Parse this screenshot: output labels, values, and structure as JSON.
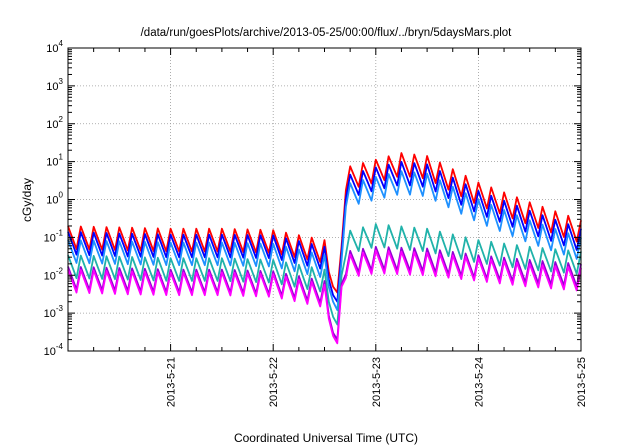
{
  "chart_data": {
    "type": "line",
    "title": "/data/run/goesPlots/archive/2013-05-25/00:00/flux/../bryn/5daysMars.plot",
    "xlabel": "Coordinated Universal Time (UTC)",
    "ylabel": "cGy/day",
    "yscale": "log",
    "ylim": [
      0.0001,
      10000
    ],
    "y_ticks": [
      {
        "base": "10",
        "exp": "-4"
      },
      {
        "base": "10",
        "exp": "-3"
      },
      {
        "base": "10",
        "exp": "-2"
      },
      {
        "base": "10",
        "exp": "-1"
      },
      {
        "base": "10",
        "exp": "0"
      },
      {
        "base": "10",
        "exp": "1"
      },
      {
        "base": "10",
        "exp": "2"
      },
      {
        "base": "10",
        "exp": "3"
      },
      {
        "base": "10",
        "exp": "4"
      }
    ],
    "x_ticks": [
      "2013-5-21",
      "2013-5-22",
      "2013-5-23",
      "2013-5-24",
      "2013-5-25"
    ],
    "xlim": [
      "2013-05-20",
      "2013-05-25"
    ],
    "grid": true,
    "series": [
      {
        "color": "#ff0000",
        "values": [
          {
            "x": "2013-05-20 00:00",
            "y": 0.07
          },
          {
            "x": "2013-05-20 12:00",
            "y": 0.065
          },
          {
            "x": "2013-05-21 00:00",
            "y": 0.06
          },
          {
            "x": "2013-05-21 12:00",
            "y": 0.06
          },
          {
            "x": "2013-05-22 00:00",
            "y": 0.055
          },
          {
            "x": "2013-05-22 12:00",
            "y": 0.03
          },
          {
            "x": "2013-05-22 14:00",
            "y": 0.005
          },
          {
            "x": "2013-05-22 15:00",
            "y": 0.0035
          },
          {
            "x": "2013-05-22 16:00",
            "y": 0.06
          },
          {
            "x": "2013-05-22 17:00",
            "y": 2.5
          },
          {
            "x": "2013-05-23 00:00",
            "y": 4
          },
          {
            "x": "2013-05-23 06:00",
            "y": 6
          },
          {
            "x": "2013-05-23 12:00",
            "y": 5
          },
          {
            "x": "2013-05-24 00:00",
            "y": 1
          },
          {
            "x": "2013-05-24 12:00",
            "y": 0.3
          },
          {
            "x": "2013-05-25 00:00",
            "y": 0.1
          }
        ]
      },
      {
        "color": "#0000ff",
        "values": [
          {
            "x": "2013-05-20 00:00",
            "y": 0.05
          },
          {
            "x": "2013-05-20 12:00",
            "y": 0.045
          },
          {
            "x": "2013-05-21 00:00",
            "y": 0.042
          },
          {
            "x": "2013-05-21 12:00",
            "y": 0.042
          },
          {
            "x": "2013-05-22 00:00",
            "y": 0.04
          },
          {
            "x": "2013-05-22 12:00",
            "y": 0.02
          },
          {
            "x": "2013-05-22 14:00",
            "y": 0.003
          },
          {
            "x": "2013-05-22 15:00",
            "y": 0.002
          },
          {
            "x": "2013-05-22 16:00",
            "y": 0.04
          },
          {
            "x": "2013-05-22 17:00",
            "y": 1.5
          },
          {
            "x": "2013-05-23 00:00",
            "y": 2.5
          },
          {
            "x": "2013-05-23 06:00",
            "y": 3.5
          },
          {
            "x": "2013-05-23 12:00",
            "y": 3
          },
          {
            "x": "2013-05-24 00:00",
            "y": 0.6
          },
          {
            "x": "2013-05-24 12:00",
            "y": 0.18
          },
          {
            "x": "2013-05-25 00:00",
            "y": 0.06
          }
        ]
      },
      {
        "color": "#1e90ff",
        "values": [
          {
            "x": "2013-05-20 00:00",
            "y": 0.03
          },
          {
            "x": "2013-05-20 12:00",
            "y": 0.028
          },
          {
            "x": "2013-05-21 00:00",
            "y": 0.026
          },
          {
            "x": "2013-05-21 12:00",
            "y": 0.026
          },
          {
            "x": "2013-05-22 00:00",
            "y": 0.024
          },
          {
            "x": "2013-05-22 12:00",
            "y": 0.012
          },
          {
            "x": "2013-05-22 14:00",
            "y": 0.002
          },
          {
            "x": "2013-05-22 15:00",
            "y": 0.0012
          },
          {
            "x": "2013-05-22 16:00",
            "y": 0.025
          },
          {
            "x": "2013-05-22 17:00",
            "y": 0.9
          },
          {
            "x": "2013-05-23 00:00",
            "y": 1.4
          },
          {
            "x": "2013-05-23 06:00",
            "y": 2
          },
          {
            "x": "2013-05-23 12:00",
            "y": 1.7
          },
          {
            "x": "2013-05-24 00:00",
            "y": 0.35
          },
          {
            "x": "2013-05-24 12:00",
            "y": 0.1
          },
          {
            "x": "2013-05-25 00:00",
            "y": 0.035
          }
        ]
      },
      {
        "color": "#20b2aa",
        "values": [
          {
            "x": "2013-05-20 00:00",
            "y": 0.012
          },
          {
            "x": "2013-05-20 12:00",
            "y": 0.011
          },
          {
            "x": "2013-05-21 00:00",
            "y": 0.01
          },
          {
            "x": "2013-05-21 12:00",
            "y": 0.01
          },
          {
            "x": "2013-05-22 00:00",
            "y": 0.009
          },
          {
            "x": "2013-05-22 12:00",
            "y": 0.005
          },
          {
            "x": "2013-05-22 14:00",
            "y": 0.0008
          },
          {
            "x": "2013-05-22 15:00",
            "y": 0.0005
          },
          {
            "x": "2013-05-22 16:00",
            "y": 0.01
          },
          {
            "x": "2013-05-22 17:00",
            "y": 0.05
          },
          {
            "x": "2013-05-23 00:00",
            "y": 0.08
          },
          {
            "x": "2013-05-23 12:00",
            "y": 0.06
          },
          {
            "x": "2013-05-24 00:00",
            "y": 0.03
          },
          {
            "x": "2013-05-24 12:00",
            "y": 0.02
          },
          {
            "x": "2013-05-25 00:00",
            "y": 0.015
          }
        ]
      },
      {
        "color": "#9400d3",
        "values": [
          {
            "x": "2013-05-20 00:00",
            "y": 0.006
          },
          {
            "x": "2013-05-20 12:00",
            "y": 0.0055
          },
          {
            "x": "2013-05-21 00:00",
            "y": 0.005
          },
          {
            "x": "2013-05-21 12:00",
            "y": 0.005
          },
          {
            "x": "2013-05-22 00:00",
            "y": 0.0045
          },
          {
            "x": "2013-05-22 12:00",
            "y": 0.0025
          },
          {
            "x": "2013-05-22 14:00",
            "y": 0.0003
          },
          {
            "x": "2013-05-22 15:00",
            "y": 0.0002
          },
          {
            "x": "2013-05-22 16:00",
            "y": 0.006
          },
          {
            "x": "2013-05-22 17:00",
            "y": 0.015
          },
          {
            "x": "2013-05-23 00:00",
            "y": 0.02
          },
          {
            "x": "2013-05-23 12:00",
            "y": 0.018
          },
          {
            "x": "2013-05-24 00:00",
            "y": 0.012
          },
          {
            "x": "2013-05-24 12:00",
            "y": 0.009
          },
          {
            "x": "2013-05-25 00:00",
            "y": 0.007
          }
        ]
      },
      {
        "color": "#ff00ff",
        "values": [
          {
            "x": "2013-05-20 00:00",
            "y": 0.005
          },
          {
            "x": "2013-05-20 12:00",
            "y": 0.0045
          },
          {
            "x": "2013-05-21 00:00",
            "y": 0.0042
          },
          {
            "x": "2013-05-21 12:00",
            "y": 0.0042
          },
          {
            "x": "2013-05-22 00:00",
            "y": 0.0038
          },
          {
            "x": "2013-05-22 12:00",
            "y": 0.002
          },
          {
            "x": "2013-05-22 14:00",
            "y": 0.00025
          },
          {
            "x": "2013-05-22 15:00",
            "y": 0.00016
          },
          {
            "x": "2013-05-22 16:00",
            "y": 0.005
          },
          {
            "x": "2013-05-22 17:00",
            "y": 0.012
          },
          {
            "x": "2013-05-23 00:00",
            "y": 0.016
          },
          {
            "x": "2013-05-23 12:00",
            "y": 0.014
          },
          {
            "x": "2013-05-24 00:00",
            "y": 0.01
          },
          {
            "x": "2013-05-24 12:00",
            "y": 0.007
          },
          {
            "x": "2013-05-25 00:00",
            "y": 0.0055
          }
        ]
      }
    ]
  }
}
